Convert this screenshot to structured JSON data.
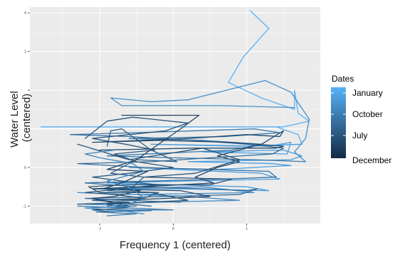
{
  "chart_data": {
    "type": "line",
    "title": "",
    "xlabel": "Frequency 1 (centered)",
    "ylabel_lines": [
      "Water Level",
      "(centered)"
    ],
    "x_ticks": [
      {
        "value": -1,
        "label": "-1"
      },
      {
        "value": 0,
        "label": "0"
      },
      {
        "value": 1,
        "label": "1"
      }
    ],
    "y_ticks": [
      {
        "value": -1,
        "label": "-1"
      },
      {
        "value": 0,
        "label": "0"
      },
      {
        "value": 1,
        "label": ""
      },
      {
        "value": 2,
        "label": ""
      },
      {
        "value": 3,
        "label": "3"
      },
      {
        "value": 4,
        "label": "4"
      }
    ],
    "xlim": [
      -1.95,
      2.0
    ],
    "ylim": [
      -1.45,
      4.15
    ],
    "grid": true,
    "background_color": "#ebebeb",
    "color_scale": {
      "low_color": "#132b43",
      "high_color": "#56b1f7"
    },
    "legend": {
      "title": "Dates",
      "position": "right",
      "labels": [
        "January",
        "October",
        "July",
        "December"
      ]
    },
    "series": [
      {
        "shade": 1.0,
        "points": [
          [
            1.05,
            4.05
          ],
          [
            1.3,
            3.6
          ],
          [
            0.95,
            2.85
          ],
          [
            0.75,
            2.2
          ],
          [
            1.2,
            1.8
          ],
          [
            1.65,
            1.5
          ],
          [
            1.65,
            2.0
          ],
          [
            1.7,
            1.4
          ],
          [
            1.85,
            1.2
          ],
          [
            1.5,
            1.05
          ],
          [
            0.8,
            1.05
          ],
          [
            -0.3,
            1.05
          ],
          [
            -1.4,
            1.05
          ],
          [
            -1.8,
            1.05
          ],
          [
            -0.8,
            1.05
          ],
          [
            0.3,
            1.05
          ],
          [
            1.4,
            1.05
          ],
          [
            1.7,
            0.85
          ],
          [
            1.75,
            0.6
          ]
        ]
      },
      {
        "shade": 0.85,
        "points": [
          [
            1.75,
            0.6
          ],
          [
            0.9,
            0.55
          ],
          [
            -0.3,
            0.6
          ],
          [
            1.3,
            0.55
          ],
          [
            1.6,
            0.65
          ],
          [
            1.55,
            0.35
          ],
          [
            0.4,
            0.4
          ],
          [
            1.5,
            0.45
          ],
          [
            1.75,
            0.3
          ],
          [
            1.6,
            0.2
          ],
          [
            0.2,
            0.15
          ],
          [
            1.35,
            0.1
          ],
          [
            1.6,
            0.05
          ],
          [
            0.6,
            -0.05
          ],
          [
            -0.6,
            0.0
          ],
          [
            1.2,
            -0.15
          ],
          [
            1.45,
            -0.3
          ],
          [
            0.2,
            -0.35
          ],
          [
            -0.9,
            -0.4
          ],
          [
            1.0,
            -0.5
          ],
          [
            1.3,
            -0.6
          ],
          [
            0.0,
            -0.55
          ]
        ]
      },
      {
        "shade": 0.72,
        "points": [
          [
            0.0,
            -0.55
          ],
          [
            -1.1,
            -0.55
          ],
          [
            0.4,
            -0.5
          ],
          [
            1.1,
            -0.65
          ],
          [
            -0.5,
            -0.7
          ],
          [
            -1.3,
            -0.65
          ],
          [
            0.2,
            -0.75
          ],
          [
            0.9,
            -0.85
          ],
          [
            -0.2,
            -0.9
          ],
          [
            -1.2,
            -0.95
          ],
          [
            -0.5,
            -1.0
          ],
          [
            -1.2,
            -1.05
          ],
          [
            -0.8,
            -1.1
          ],
          [
            -0.4,
            -1.2
          ]
        ]
      },
      {
        "shade": 0.75,
        "points": [
          [
            1.65,
            1.55
          ],
          [
            0.65,
            1.6
          ],
          [
            -0.7,
            1.6
          ],
          [
            -0.85,
            1.8
          ],
          [
            -0.3,
            1.7
          ],
          [
            0.2,
            1.75
          ],
          [
            1.25,
            2.25
          ],
          [
            1.6,
            1.95
          ],
          [
            1.85,
            1.25
          ],
          [
            1.8,
            0.75
          ],
          [
            1.65,
            0.4
          ],
          [
            1.8,
            0.15
          ]
        ]
      },
      {
        "shade": 0.58,
        "points": [
          [
            1.8,
            0.15
          ],
          [
            1.1,
            0.2
          ],
          [
            0.0,
            0.25
          ],
          [
            -0.9,
            0.3
          ],
          [
            0.8,
            0.45
          ],
          [
            1.2,
            0.6
          ],
          [
            0.4,
            0.7
          ],
          [
            -0.6,
            0.75
          ],
          [
            0.7,
            0.8
          ],
          [
            1.45,
            0.9
          ],
          [
            1.1,
            1.0
          ],
          [
            0.3,
            0.95
          ],
          [
            -0.5,
            0.9
          ],
          [
            -1.4,
            0.85
          ]
        ]
      },
      {
        "shade": 0.5,
        "points": [
          [
            -1.4,
            0.85
          ],
          [
            -0.6,
            0.8
          ],
          [
            0.3,
            0.7
          ],
          [
            1.0,
            0.6
          ],
          [
            1.5,
            0.5
          ],
          [
            1.35,
            0.35
          ],
          [
            0.5,
            0.25
          ],
          [
            -0.3,
            0.15
          ],
          [
            -1.3,
            0.1
          ],
          [
            -0.4,
            0.0
          ],
          [
            0.5,
            -0.05
          ],
          [
            1.3,
            -0.1
          ],
          [
            1.4,
            -0.25
          ],
          [
            0.7,
            -0.3
          ],
          [
            -0.3,
            -0.35
          ],
          [
            -1.2,
            -0.4
          ],
          [
            -0.5,
            -0.5
          ],
          [
            0.4,
            -0.55
          ],
          [
            1.0,
            -0.6
          ],
          [
            1.15,
            -0.55
          ],
          [
            0.9,
            -0.7
          ],
          [
            -0.1,
            -0.75
          ],
          [
            -1.2,
            -0.8
          ],
          [
            -0.7,
            -0.85
          ],
          [
            0.1,
            -0.9
          ]
        ]
      },
      {
        "shade": 0.32,
        "points": [
          [
            -1.2,
            0.75
          ],
          [
            -0.9,
            1.2
          ],
          [
            -0.55,
            1.3
          ],
          [
            -0.3,
            1.25
          ],
          [
            0.2,
            1.15
          ],
          [
            -0.1,
            0.95
          ],
          [
            -0.6,
            0.85
          ],
          [
            -1.1,
            0.75
          ],
          [
            -0.65,
            0.6
          ],
          [
            -0.25,
            0.45
          ],
          [
            -0.8,
            0.35
          ],
          [
            -0.5,
            0.15
          ],
          [
            0.0,
            0.0
          ],
          [
            -0.6,
            -0.15
          ],
          [
            -1.1,
            -0.25
          ],
          [
            -0.7,
            -0.35
          ],
          [
            -0.2,
            -0.45
          ],
          [
            -0.7,
            -0.55
          ],
          [
            -1.2,
            -0.65
          ],
          [
            -0.8,
            -0.7
          ],
          [
            -0.4,
            -0.8
          ],
          [
            -1.1,
            -0.85
          ],
          [
            -0.6,
            -0.9
          ],
          [
            -1.3,
            -0.95
          ]
        ]
      },
      {
        "shade": 0.4,
        "points": [
          [
            -0.9,
            0.55
          ],
          [
            -0.85,
            0.95
          ],
          [
            -0.7,
            1.0
          ],
          [
            -0.3,
            0.45
          ],
          [
            0.05,
            0.15
          ],
          [
            -0.5,
            0.2
          ],
          [
            -0.85,
            -0.15
          ],
          [
            -0.4,
            -0.25
          ],
          [
            -0.55,
            -0.5
          ],
          [
            -0.9,
            -0.6
          ],
          [
            -0.2,
            -0.65
          ],
          [
            -0.6,
            -0.95
          ],
          [
            -0.3,
            -1.0
          ]
        ]
      },
      {
        "shade": 0.18,
        "points": [
          [
            -0.7,
            1.35
          ],
          [
            0.35,
            1.35
          ],
          [
            0.1,
            1.0
          ],
          [
            -0.5,
            0.2
          ],
          [
            -0.9,
            -0.05
          ],
          [
            -0.35,
            -0.1
          ],
          [
            -0.7,
            -0.4
          ],
          [
            -0.95,
            -0.55
          ],
          [
            -0.45,
            -0.6
          ],
          [
            -0.8,
            -0.75
          ],
          [
            -1.1,
            -0.8
          ],
          [
            -0.6,
            -1.0
          ]
        ]
      },
      {
        "shade": 0.22,
        "points": [
          [
            -1.0,
            0.45
          ],
          [
            0.3,
            0.5
          ],
          [
            1.4,
            0.5
          ],
          [
            1.5,
            0.55
          ],
          [
            0.8,
            0.65
          ],
          [
            -0.2,
            0.7
          ],
          [
            -1.1,
            0.65
          ],
          [
            0.2,
            0.75
          ],
          [
            1.0,
            0.85
          ],
          [
            1.45,
            0.8
          ],
          [
            1.5,
            0.95
          ],
          [
            1.2,
            0.6
          ],
          [
            0.6,
            0.3
          ],
          [
            0.9,
            0.15
          ],
          [
            0.6,
            0.0
          ],
          [
            0.3,
            -0.25
          ],
          [
            0.55,
            -0.4
          ],
          [
            -0.4,
            -0.5
          ],
          [
            -1.1,
            -0.55
          ],
          [
            0.1,
            -0.6
          ],
          [
            0.5,
            -0.75
          ],
          [
            -0.7,
            -0.85
          ]
        ]
      },
      {
        "shade": 0.28,
        "points": [
          [
            -1.3,
            0.6
          ],
          [
            -0.6,
            0.2
          ],
          [
            -0.1,
            0.35
          ],
          [
            0.4,
            0.5
          ],
          [
            0.9,
            0.2
          ],
          [
            0.3,
            -0.15
          ],
          [
            -0.4,
            -0.25
          ],
          [
            0.8,
            -0.3
          ],
          [
            0.5,
            -0.45
          ],
          [
            -0.7,
            -0.45
          ],
          [
            -1.15,
            -0.5
          ],
          [
            -1.0,
            -0.65
          ],
          [
            -0.3,
            -0.65
          ],
          [
            0.2,
            -0.85
          ],
          [
            -0.9,
            -0.95
          ],
          [
            -0.6,
            -1.05
          ],
          [
            -1.1,
            -1.1
          ],
          [
            -0.8,
            -1.15
          ]
        ]
      },
      {
        "shade": 0.6,
        "points": [
          [
            -1.3,
            -1.0
          ],
          [
            -0.6,
            -1.05
          ],
          [
            0.0,
            -1.1
          ],
          [
            -0.9,
            -1.1
          ],
          [
            -0.3,
            -1.12
          ],
          [
            -1.05,
            -1.15
          ],
          [
            -0.5,
            -1.2
          ],
          [
            -0.9,
            -1.25
          ]
        ]
      },
      {
        "shade": 0.66,
        "points": [
          [
            -0.9,
            -1.0
          ],
          [
            -0.6,
            -0.95
          ],
          [
            -0.4,
            -0.8
          ],
          [
            -0.55,
            -0.55
          ],
          [
            -0.9,
            -0.35
          ],
          [
            -0.4,
            -0.1
          ],
          [
            -0.55,
            0.1
          ],
          [
            -1.0,
            0.25
          ],
          [
            -1.2,
            0.35
          ],
          [
            -0.8,
            0.45
          ]
        ]
      }
    ]
  }
}
